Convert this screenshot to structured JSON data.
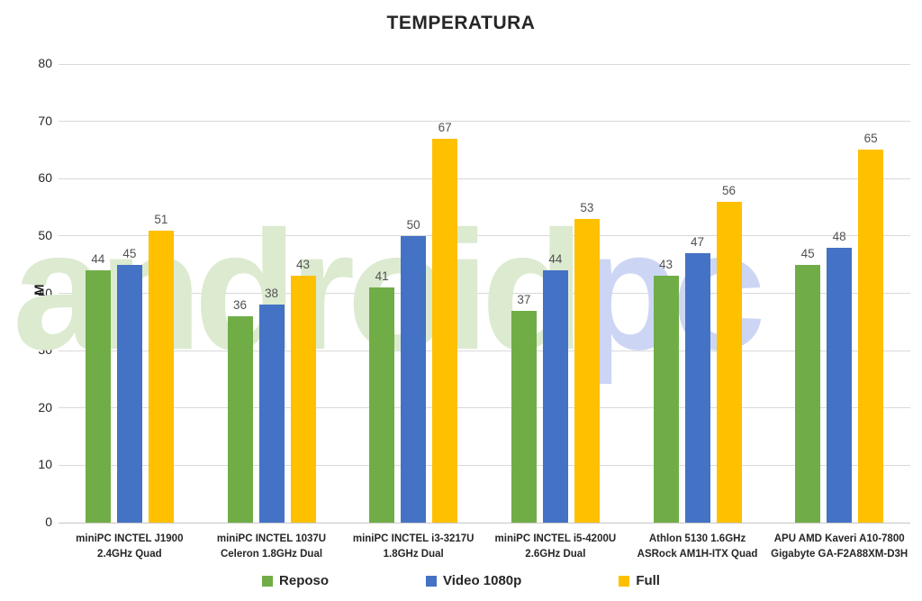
{
  "title": "TEMPERATURA",
  "ylabel": "MB/s",
  "watermark": {
    "part1": "android",
    "part2": "pc",
    "color1": "#dcead0",
    "color2": "#ccd6f4"
  },
  "chart_data": {
    "type": "bar",
    "categories": [
      [
        "miniPC INCTEL J1900",
        "2.4GHz Quad"
      ],
      [
        "miniPC INCTEL 1037U",
        "Celeron 1.8GHz Dual"
      ],
      [
        "miniPC INCTEL i3-3217U",
        "1.8GHz Dual"
      ],
      [
        "miniPC INCTEL i5-4200U",
        "2.6GHz Dual"
      ],
      [
        "Athlon 5130 1.6GHz",
        "ASRock AM1H-ITX Quad"
      ],
      [
        "APU AMD Kaveri A10-7800",
        "Gigabyte GA-F2A88XM-D3H"
      ]
    ],
    "series": [
      {
        "name": "Reposo",
        "color": "#70AD47",
        "values": [
          44,
          36,
          41,
          37,
          43,
          45
        ]
      },
      {
        "name": "Video 1080p",
        "color": "#4472C4",
        "values": [
          45,
          38,
          50,
          44,
          47,
          48
        ]
      },
      {
        "name": "Full",
        "color": "#FFC000",
        "values": [
          51,
          43,
          67,
          53,
          56,
          65
        ]
      }
    ],
    "title": "TEMPERATURA",
    "xlabel": "",
    "ylabel": "MB/s",
    "ylim": [
      0,
      80
    ],
    "ytick_step": 10,
    "grid": true,
    "legend_position": "bottom",
    "value_labels": true
  }
}
